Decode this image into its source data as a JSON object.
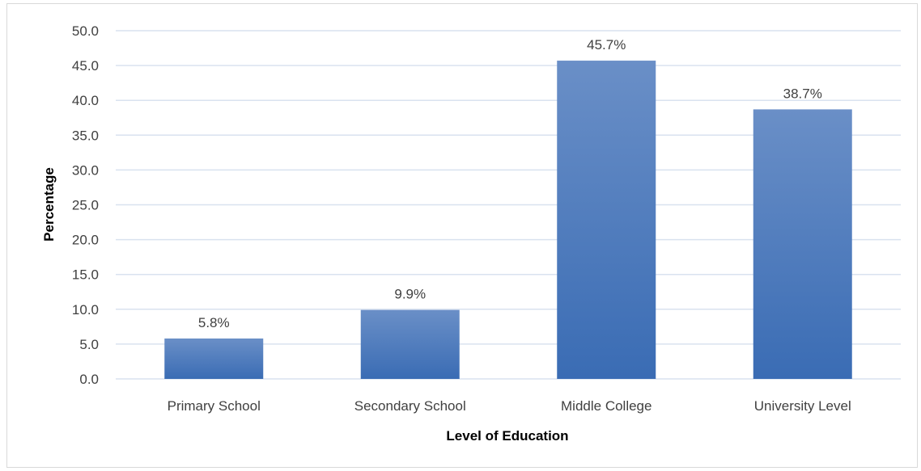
{
  "chart_data": {
    "type": "bar",
    "title": "",
    "xlabel": "Level of Education",
    "ylabel": "Percentage",
    "categories": [
      "Primary School",
      "Secondary School",
      "Middle College",
      "University Level"
    ],
    "values": [
      5.8,
      9.9,
      45.7,
      38.7
    ],
    "data_labels": [
      "5.8%",
      "9.9%",
      "45.7%",
      "38.7%"
    ],
    "ylim": [
      0,
      50
    ],
    "y_ticks": [
      "0.0",
      "5.0",
      "10.0",
      "15.0",
      "20.0",
      "25.0",
      "30.0",
      "35.0",
      "40.0",
      "45.0",
      "50.0"
    ],
    "grid": true,
    "legend": "none",
    "bar_color_top": "#6a8fc7",
    "bar_color_bottom": "#3a6cb4",
    "grid_color": "#d9e2ef"
  }
}
